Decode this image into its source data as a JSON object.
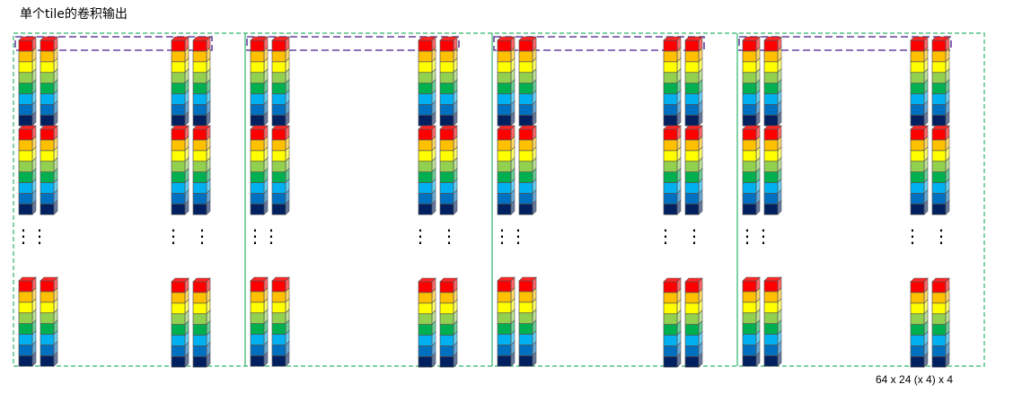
{
  "title": "单个tile的卷积输出",
  "caption": "64 x 24 (x 4) x 4",
  "colors": {
    "panel_border": "#2db36a",
    "highlight_border": "#6a3fa0",
    "cube_edge": "#555555",
    "ellipsis": "#000000"
  },
  "cube_colors": [
    "#ff0000",
    "#ffc000",
    "#ffff00",
    "#92d050",
    "#00b050",
    "#00b0f0",
    "#0070c0",
    "#002060"
  ],
  "panel_count": 4,
  "rows_per_panel": [
    "row-1",
    "row-2",
    "row-last"
  ],
  "ellipsis_glyph": "⋮"
}
